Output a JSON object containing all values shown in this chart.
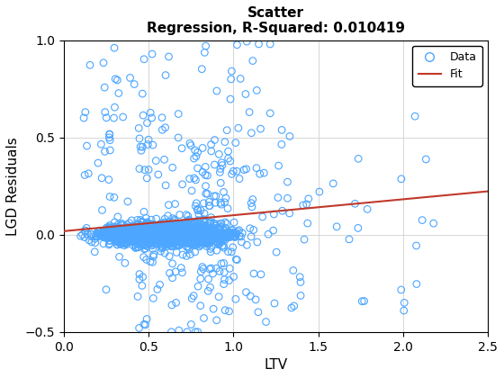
{
  "title_line1": "Scatter",
  "title_line2": "Regression, R-Squared: 0.010419",
  "xlabel": "LTV",
  "ylabel": "LGD Residuals",
  "xlim": [
    0,
    2.5
  ],
  "ylim": [
    -0.5,
    1.0
  ],
  "xticks": [
    0,
    0.5,
    1.0,
    1.5,
    2.0,
    2.5
  ],
  "yticks": [
    -0.5,
    0,
    0.5,
    1.0
  ],
  "scatter_color": "#4DA6FF",
  "fit_color": "#C0392B",
  "fit_intercept": 0.018,
  "fit_slope": 0.082,
  "marker_size": 5.5,
  "marker_lw": 0.8,
  "grid_color": "#d0d0d0",
  "background_color": "#ffffff",
  "legend_labels": [
    "Data",
    "Fit"
  ],
  "random_seed": 42,
  "n_points_dense": 3000,
  "n_points_sparse": 300
}
